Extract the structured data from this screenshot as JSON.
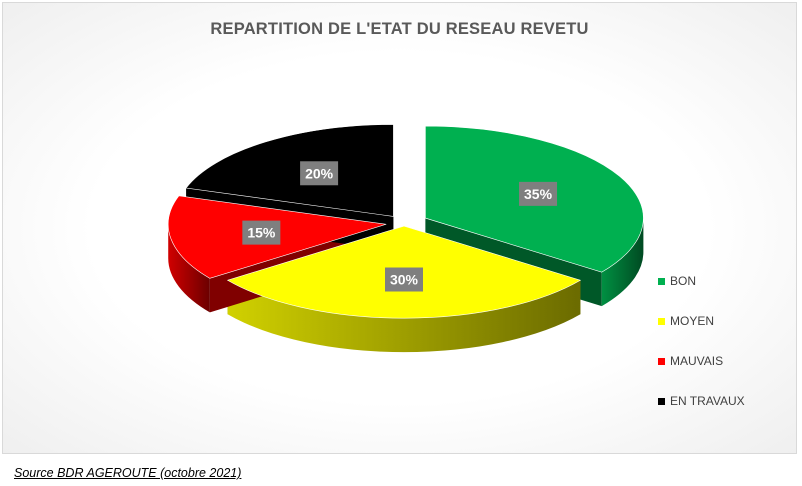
{
  "chart_data": {
    "type": "pie",
    "title": "REPARTITION DE L'ETAT DU RESEAU REVETU",
    "categories": [
      "BON",
      "MOYEN",
      "MAUVAIS",
      "EN TRAVAUX"
    ],
    "values": [
      35,
      30,
      15,
      20
    ],
    "data_labels": [
      "35%",
      "30%",
      "15%",
      "20%"
    ],
    "colors": [
      "#00b050",
      "#ffff00",
      "#ff0000",
      "#000000"
    ],
    "legend_position": "right",
    "style": "3d-exploded"
  },
  "source": "Source BDR AGEROUTE (octobre 2021)"
}
